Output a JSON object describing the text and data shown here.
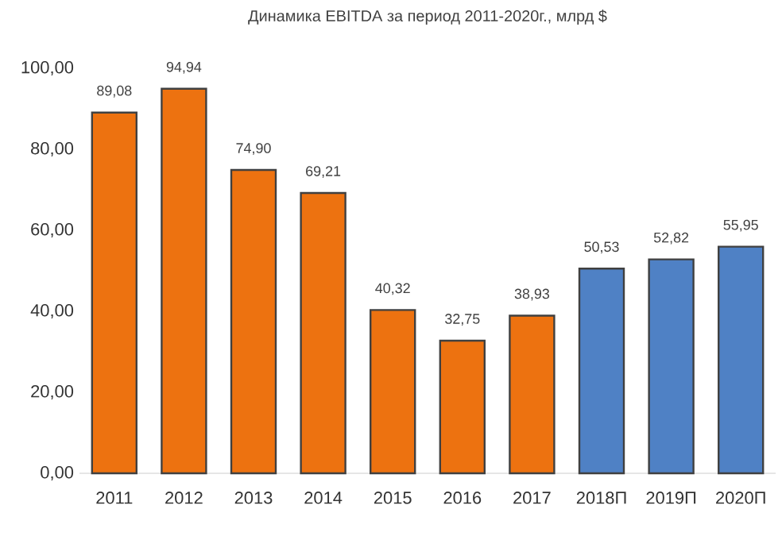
{
  "chart_data": {
    "type": "bar",
    "title": "Динамика EBITDA за период 2011-2020г.,  млрд $",
    "categories": [
      "2011",
      "2012",
      "2013",
      "2014",
      "2015",
      "2016",
      "2017",
      "2018П",
      "2019П",
      "2020П"
    ],
    "values": [
      89.08,
      94.94,
      74.9,
      69.21,
      40.32,
      32.75,
      38.93,
      50.53,
      52.82,
      55.95
    ],
    "colors": [
      "#ed7210",
      "#ed7210",
      "#ed7210",
      "#ed7210",
      "#ed7210",
      "#ed7210",
      "#ed7210",
      "#4f81c5",
      "#4f81c5",
      "#4f81c5"
    ],
    "value_labels": [
      "89,08",
      "94,94",
      "74,90",
      "69,21",
      "40,32",
      "32,75",
      "38,93",
      "50,53",
      "52,82",
      "55,95"
    ],
    "ylim": [
      0,
      100
    ],
    "yticks": [
      {
        "value": 0,
        "label": "0,00"
      },
      {
        "value": 20,
        "label": "20,00"
      },
      {
        "value": 40,
        "label": "40,00"
      },
      {
        "value": 60,
        "label": "60,00"
      },
      {
        "value": 80,
        "label": "80,00"
      },
      {
        "value": 100,
        "label": "100,00"
      }
    ],
    "grid": false
  }
}
